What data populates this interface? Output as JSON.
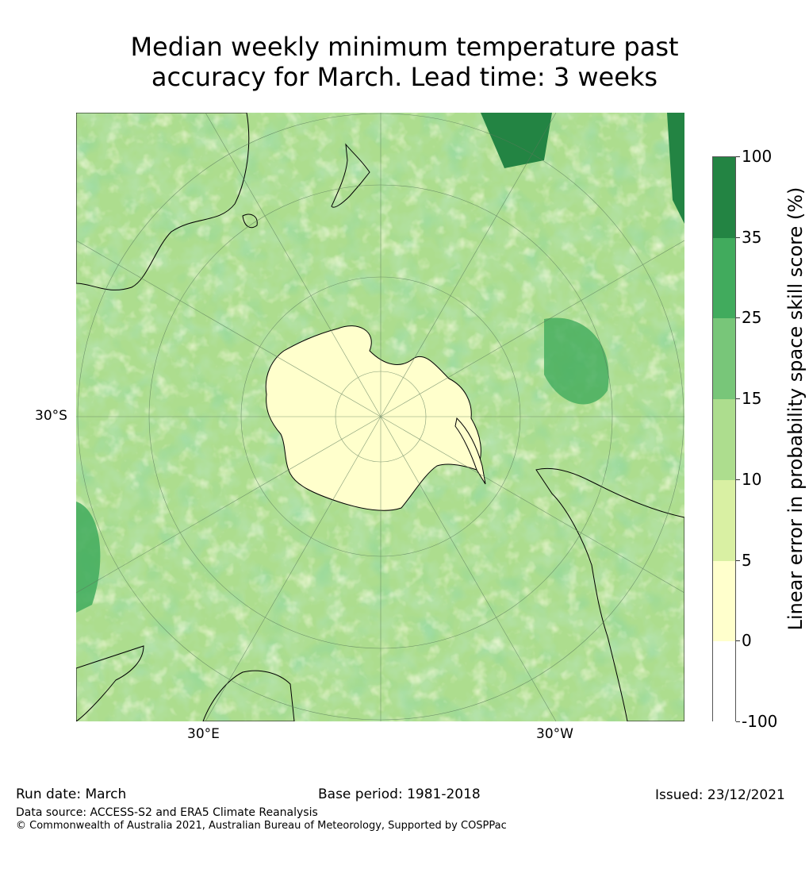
{
  "title": {
    "line1": "Median weekly minimum temperature past",
    "line2": "accuracy for March. Lead time: 3 weeks"
  },
  "map": {
    "projection": "south-polar-stereographic",
    "lat_label": "30°S",
    "lon_label_east": "30°E",
    "lon_label_west": "30°W",
    "land_outline_color": "#000000",
    "graticule_color": "#5a7a5a"
  },
  "colorbar": {
    "label": "Linear error in probability space skill score (%)",
    "ticks": [
      "100",
      "35",
      "25",
      "15",
      "10",
      "5",
      "0",
      "-100"
    ],
    "bins": [
      {
        "range": "35–100",
        "color": "#238443"
      },
      {
        "range": "25–35",
        "color": "#41ab5d"
      },
      {
        "range": "15–25",
        "color": "#78c679"
      },
      {
        "range": "10–15",
        "color": "#addd8e"
      },
      {
        "range": "5–10",
        "color": "#d9f0a3"
      },
      {
        "range": "0–5",
        "color": "#ffffcc"
      },
      {
        "range": "-100–0",
        "color": "#ffffff"
      }
    ]
  },
  "footer": {
    "run_date": "Run date: March",
    "base_period": "Base period: 1981-2018",
    "issued": "Issued: 23/12/2021",
    "data_source": "Data source: ACCESS-S2 and ERA5 Climate Reanalysis",
    "copyright": "© Commonwealth of Australia 2021, Australian Bureau of Meteorology, Supported by COSPPac"
  }
}
